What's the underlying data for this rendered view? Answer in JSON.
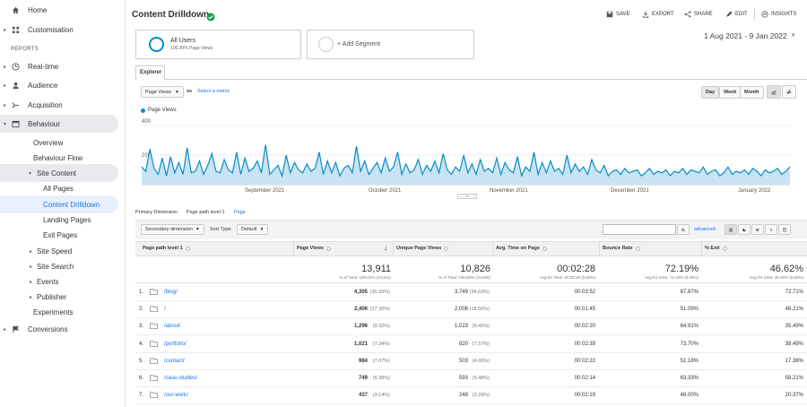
{
  "sidebar": {
    "items": [
      {
        "label": "Home",
        "icon": "home-icon"
      },
      {
        "label": "Customisation",
        "icon": "dashboard-icon"
      },
      {
        "label": "REPORTS"
      },
      {
        "label": "Real-time",
        "icon": "clock-icon"
      },
      {
        "label": "Audience",
        "icon": "person-icon"
      },
      {
        "label": "Acquisition",
        "icon": "acquisition-icon"
      },
      {
        "label": "Behaviour",
        "icon": "behaviour-icon"
      },
      {
        "label": "Overview"
      },
      {
        "label": "Behaviour Flow"
      },
      {
        "label": "Site Content"
      },
      {
        "label": "All Pages"
      },
      {
        "label": "Content Drilldown"
      },
      {
        "label": "Landing Pages"
      },
      {
        "label": "Exit Pages"
      },
      {
        "label": "Site Speed"
      },
      {
        "label": "Site Search"
      },
      {
        "label": "Events"
      },
      {
        "label": "Publisher"
      },
      {
        "label": "Experiments"
      },
      {
        "label": "Conversions",
        "icon": "flag-icon"
      }
    ]
  },
  "header": {
    "title": "Content Drilldown",
    "save": "SAVE",
    "export": "EXPORT",
    "share": "SHARE",
    "edit": "EDIT",
    "insights": "INSIGHTS"
  },
  "segment": {
    "name": "All Users",
    "sub": "100.00% Page Views",
    "add": "+ Add Segment"
  },
  "date_range": "1 Aug 2021 - 9 Jan 2022",
  "explorer_tab": "Explorer",
  "metric_select": "Page Views",
  "vs": "vs",
  "select_metric": "Select a metric",
  "granularity": [
    "Day",
    "Week",
    "Month"
  ],
  "chart_data": {
    "type": "line",
    "series": [
      {
        "name": "Page Views",
        "color": "#058dc7"
      }
    ],
    "y_ticks": [
      "400",
      "200"
    ],
    "x_labels": [
      "September 2021",
      "October 2021",
      "November 2021",
      "December 2021",
      "January 2022"
    ],
    "ylim": [
      0,
      400
    ],
    "values": [
      120,
      90,
      240,
      110,
      70,
      180,
      60,
      190,
      80,
      150,
      70,
      250,
      80,
      90,
      160,
      70,
      130,
      210,
      90,
      80,
      170,
      100,
      80,
      220,
      70,
      180,
      90,
      110,
      160,
      80,
      270,
      70,
      100,
      130,
      60,
      200,
      80,
      150,
      100,
      80,
      140,
      90,
      110,
      220,
      70,
      160,
      80,
      150,
      60,
      110,
      130,
      80,
      260,
      90,
      160,
      70,
      110,
      150,
      80,
      180,
      90,
      120,
      220,
      70,
      140,
      80,
      100,
      170,
      70,
      130,
      90,
      160,
      80,
      210,
      100,
      70,
      120,
      90,
      200,
      80,
      140,
      70,
      170,
      90,
      110,
      80,
      180,
      70,
      150,
      100,
      80,
      190,
      60,
      120,
      90,
      220,
      70,
      150,
      80,
      160,
      90,
      110,
      70,
      200,
      80,
      140,
      90,
      120,
      70,
      170,
      100,
      80,
      130,
      60,
      90,
      100,
      70,
      110,
      80,
      90,
      100,
      60,
      80,
      110,
      70,
      90,
      80,
      100,
      60,
      90,
      80,
      110,
      70,
      100,
      90,
      80,
      120,
      70,
      90,
      100,
      60,
      80,
      120,
      70,
      90,
      80,
      100,
      70,
      110,
      90,
      60,
      100,
      80,
      90,
      110,
      70,
      90,
      120
    ]
  },
  "primary_dimension": {
    "label": "Primary Dimension:",
    "value": "Page path level 1",
    "other": "Page"
  },
  "secondary_dimension": "Secondary dimension",
  "sort_type_label": "Sort Type:",
  "sort_type": "Default",
  "search_advanced": "advanced",
  "table": {
    "columns": [
      "Page path level 1",
      "Page Views",
      "Unique Page Views",
      "Avg. Time on Page",
      "Bounce Rate",
      "% Exit"
    ],
    "totals": [
      {
        "v": "13,911",
        "s": "% of Total: 100.00% (13,911)"
      },
      {
        "v": "10,826",
        "s": "% of Total: 100.00% (10,826)"
      },
      {
        "v": "00:02:28",
        "s": "Avg for View: 00:02:28 (0.00%)"
      },
      {
        "v": "72.19%",
        "s": "Avg for View: 72.19% (0.00%)"
      },
      {
        "v": "46.62%",
        "s": "Avg for View: 46.62% (0.00%)"
      }
    ],
    "rows": [
      {
        "n": "1.",
        "path": "/blog/",
        "pv": "4,305",
        "pvp": "(30.95%)",
        "upv": "3,749",
        "upvp": "(34.63%)",
        "atp": "00:03:52",
        "br": "87.87%",
        "ex": "72.71%"
      },
      {
        "n": "2.",
        "path": "/",
        "pv": "2,406",
        "pvp": "(17.30%)",
        "upv": "2,008",
        "upvp": "(18.55%)",
        "atp": "00:01:45",
        "br": "51.09%",
        "ex": "48.21%"
      },
      {
        "n": "3.",
        "path": "/about/",
        "pv": "1,296",
        "pvp": "(9.32%)",
        "upv": "1,023",
        "upvp": "(9.45%)",
        "atp": "00:02:20",
        "br": "64.91%",
        "ex": "35.49%"
      },
      {
        "n": "4.",
        "path": "/portfolio/",
        "pv": "1,021",
        "pvp": "(7.34%)",
        "upv": "820",
        "upvp": "(7.57%)",
        "atp": "00:02:39",
        "br": "73.70%",
        "ex": "38.49%"
      },
      {
        "n": "5.",
        "path": "/contact/",
        "pv": "984",
        "pvp": "(7.07%)",
        "upv": "503",
        "upvp": "(4.65%)",
        "atp": "00:02:22",
        "br": "51.18%",
        "ex": "17.38%"
      },
      {
        "n": "6.",
        "path": "/case-studies/",
        "pv": "749",
        "pvp": "(5.38%)",
        "upv": "593",
        "upvp": "(5.48%)",
        "atp": "00:02:14",
        "br": "63.33%",
        "ex": "58.21%"
      },
      {
        "n": "7.",
        "path": "/our-work/",
        "pv": "437",
        "pvp": "(3.14%)",
        "upv": "248",
        "upvp": "(2.29%)",
        "atp": "00:02:19",
        "br": "48.00%",
        "ex": "20.37%"
      }
    ]
  }
}
